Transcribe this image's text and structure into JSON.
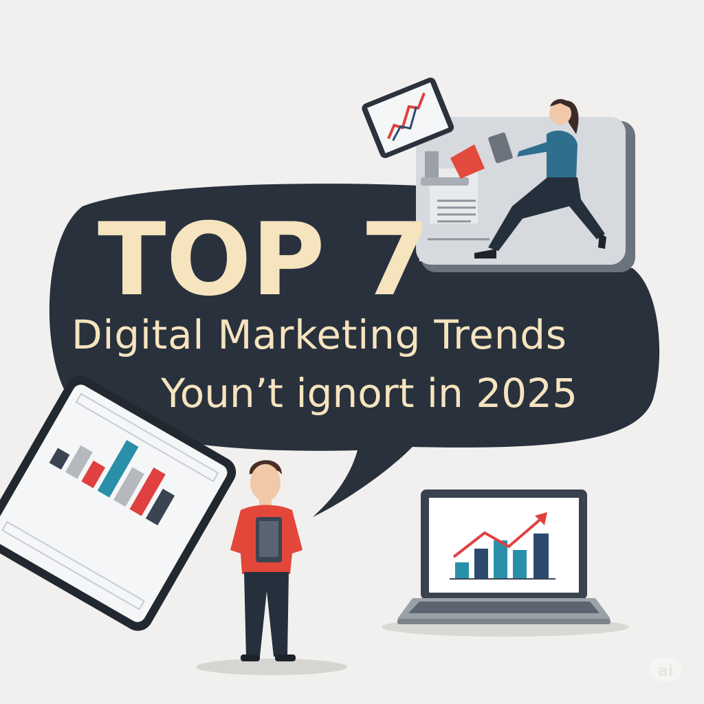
{
  "headline": {
    "title": "TOP 7",
    "line1": "Digital Marketing Trends",
    "line2": "Youn’t ignort in 2025"
  },
  "watermark": "ai",
  "colors": {
    "background": "#f1f0ee",
    "bubble": "#29313d",
    "text": "#f6e4bf",
    "accent_red": "#e04040",
    "accent_teal": "#2a8fa8",
    "accent_navy": "#2c4a6e",
    "grey": "#b5b8bc"
  },
  "illustrations": {
    "tablet_chart_icon": "bar-chart-icon",
    "laptop_chart_icon": "growth-chart-icon",
    "monitor_chart_icon": "trend-arrow-icon"
  }
}
